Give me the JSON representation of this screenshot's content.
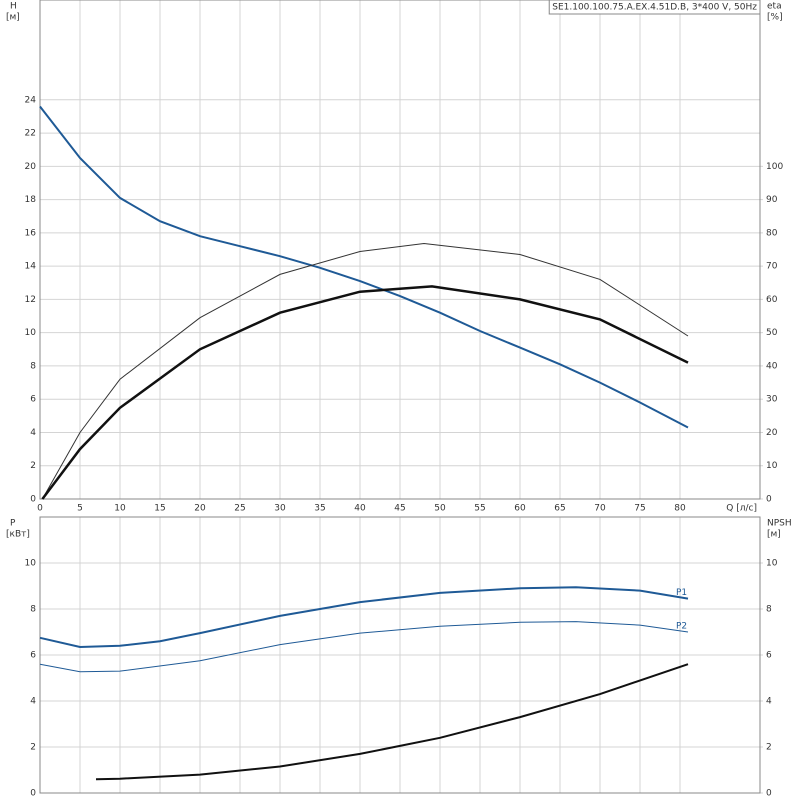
{
  "chart_data": [
    {
      "type": "line",
      "title": "SE1.100.100.75.A.EX.4.51D.B, 3*400 V, 50Hz",
      "y_label": "H",
      "y_unit": "[м]",
      "y2_label": "eta",
      "y2_unit": "[%]",
      "x_label": "Q [л/с]",
      "xlim": [
        0,
        90
      ],
      "xticks": [
        0,
        5,
        10,
        15,
        20,
        25,
        30,
        35,
        40,
        45,
        50,
        55,
        60,
        65,
        70,
        75,
        80
      ],
      "ylim": [
        0,
        30
      ],
      "yticks": [
        0,
        2,
        4,
        6,
        8,
        10,
        12,
        14,
        16,
        18,
        20,
        22,
        24
      ],
      "y2lim": [
        0,
        150
      ],
      "y2ticks": [
        0,
        10,
        20,
        30,
        40,
        50,
        60,
        70,
        80,
        90,
        100
      ],
      "grid": true,
      "series": [
        {
          "color": "#1f5a96",
          "width": 2,
          "axis": "y",
          "x": [
            0,
            5,
            10,
            15,
            20,
            25,
            30,
            35,
            40,
            45,
            50,
            55,
            60,
            65,
            70,
            75,
            81
          ],
          "values": [
            23.6,
            20.5,
            18.1,
            16.7,
            15.8,
            15.2,
            14.6,
            13.9,
            13.1,
            12.2,
            11.2,
            10.1,
            9.1,
            8.1,
            7.0,
            5.8,
            4.3
          ]
        },
        {
          "color": "#333333",
          "width": 1,
          "axis": "y2",
          "x": [
            0.3,
            5,
            10,
            20,
            30,
            40,
            48,
            60,
            70,
            81
          ],
          "values": [
            0,
            20,
            36,
            54.5,
            67.5,
            74.4,
            76.8,
            73.5,
            66,
            49
          ]
        },
        {
          "color": "#111111",
          "width": 2.5,
          "axis": "y2",
          "x": [
            0.3,
            5,
            10,
            20,
            30,
            40,
            49,
            60,
            70,
            81
          ],
          "values": [
            0,
            15,
            27.4,
            45,
            56,
            62.3,
            63.9,
            60,
            54,
            41
          ]
        }
      ]
    },
    {
      "type": "line",
      "y_label": "P",
      "y_unit": "[кВт]",
      "y2_label": "NPSH",
      "y2_unit": "[м]",
      "xlim": [
        0,
        90
      ],
      "ylim": [
        0,
        12
      ],
      "yticks": [
        0,
        2,
        4,
        6,
        8,
        10
      ],
      "y2lim": [
        0,
        12
      ],
      "y2ticks": [
        0,
        2,
        4,
        6,
        8,
        10
      ],
      "grid": true,
      "series": [
        {
          "name": "P1",
          "color": "#1f5a96",
          "width": 2,
          "axis": "y",
          "x": [
            0,
            5,
            10,
            15,
            20,
            30,
            40,
            50,
            60,
            67,
            75,
            81
          ],
          "values": [
            6.75,
            6.35,
            6.4,
            6.6,
            6.95,
            7.7,
            8.3,
            8.7,
            8.9,
            8.95,
            8.8,
            8.45
          ]
        },
        {
          "name": "P2",
          "color": "#1f5a96",
          "width": 1,
          "axis": "y",
          "x": [
            0,
            5,
            10,
            20,
            30,
            40,
            50,
            60,
            67,
            75,
            81
          ],
          "values": [
            5.6,
            5.27,
            5.3,
            5.75,
            6.45,
            6.95,
            7.25,
            7.42,
            7.45,
            7.3,
            7.0
          ]
        },
        {
          "color": "#111111",
          "width": 2,
          "axis": "y2",
          "x": [
            7,
            10,
            20,
            30,
            40,
            50,
            60,
            70,
            81
          ],
          "values": [
            0.6,
            0.62,
            0.8,
            1.15,
            1.7,
            2.4,
            3.3,
            4.3,
            5.6
          ]
        }
      ]
    }
  ]
}
